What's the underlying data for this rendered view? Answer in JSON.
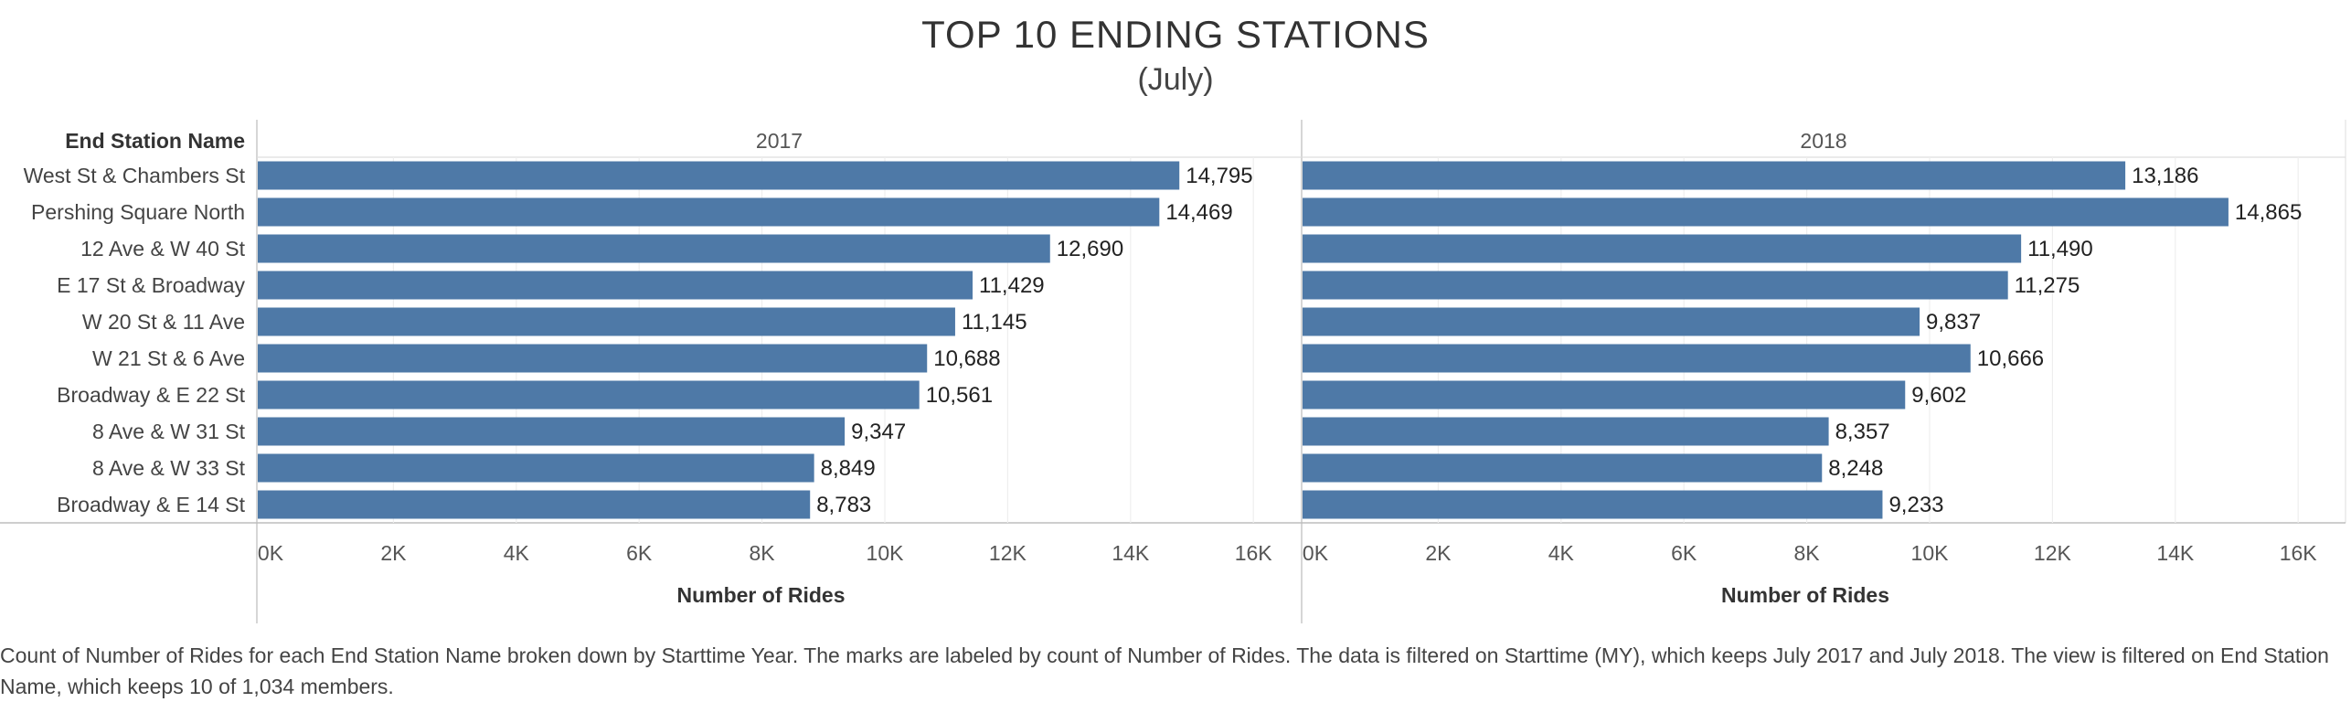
{
  "header": {
    "title": "TOP 10 ENDING STATIONS",
    "subtitle": "(July)"
  },
  "chart_data": {
    "type": "bar",
    "orientation": "horizontal",
    "row_header": "End Station Name",
    "xlabel": "Number of Rides",
    "xlim": [
      0,
      17000
    ],
    "x_ticks": [
      0,
      2000,
      4000,
      6000,
      8000,
      10000,
      12000,
      14000,
      16000
    ],
    "x_tick_labels": [
      "0K",
      "2K",
      "4K",
      "6K",
      "8K",
      "10K",
      "12K",
      "14K",
      "16K"
    ],
    "grid": true,
    "bar_color": "#4e79a7",
    "categories": [
      "West St & Chambers St",
      "Pershing Square North",
      "12 Ave & W 40 St",
      "E 17 St & Broadway",
      "W 20 St & 11 Ave",
      "W 21 St & 6 Ave",
      "Broadway & E 22 St",
      "8 Ave & W 31 St",
      "8 Ave & W 33 St",
      "Broadway & E 14 St"
    ],
    "series": [
      {
        "name": "2017",
        "values": [
          14795,
          14469,
          12690,
          11429,
          11145,
          10688,
          10561,
          9347,
          8849,
          8783
        ],
        "labels": [
          "14,795",
          "14,469",
          "12,690",
          "11,429",
          "11,145",
          "10,688",
          "10,561",
          "9,347",
          "8,849",
          "8,783"
        ]
      },
      {
        "name": "2018",
        "values": [
          13186,
          14865,
          11490,
          11275,
          9837,
          10666,
          9602,
          8357,
          8248,
          9233
        ],
        "labels": [
          "13,186",
          "14,865",
          "11,490",
          "11,275",
          "9,837",
          "10,666",
          "9,602",
          "8,357",
          "8,248",
          "9,233"
        ]
      }
    ]
  },
  "caption": "Count of Number of Rides for each End Station Name broken down by Starttime Year.  The marks are labeled by count of Number of Rides. The data is filtered on Starttime (MY), which keeps July 2017 and July 2018. The view is filtered on End Station Name, which keeps 10 of 1,034 members."
}
